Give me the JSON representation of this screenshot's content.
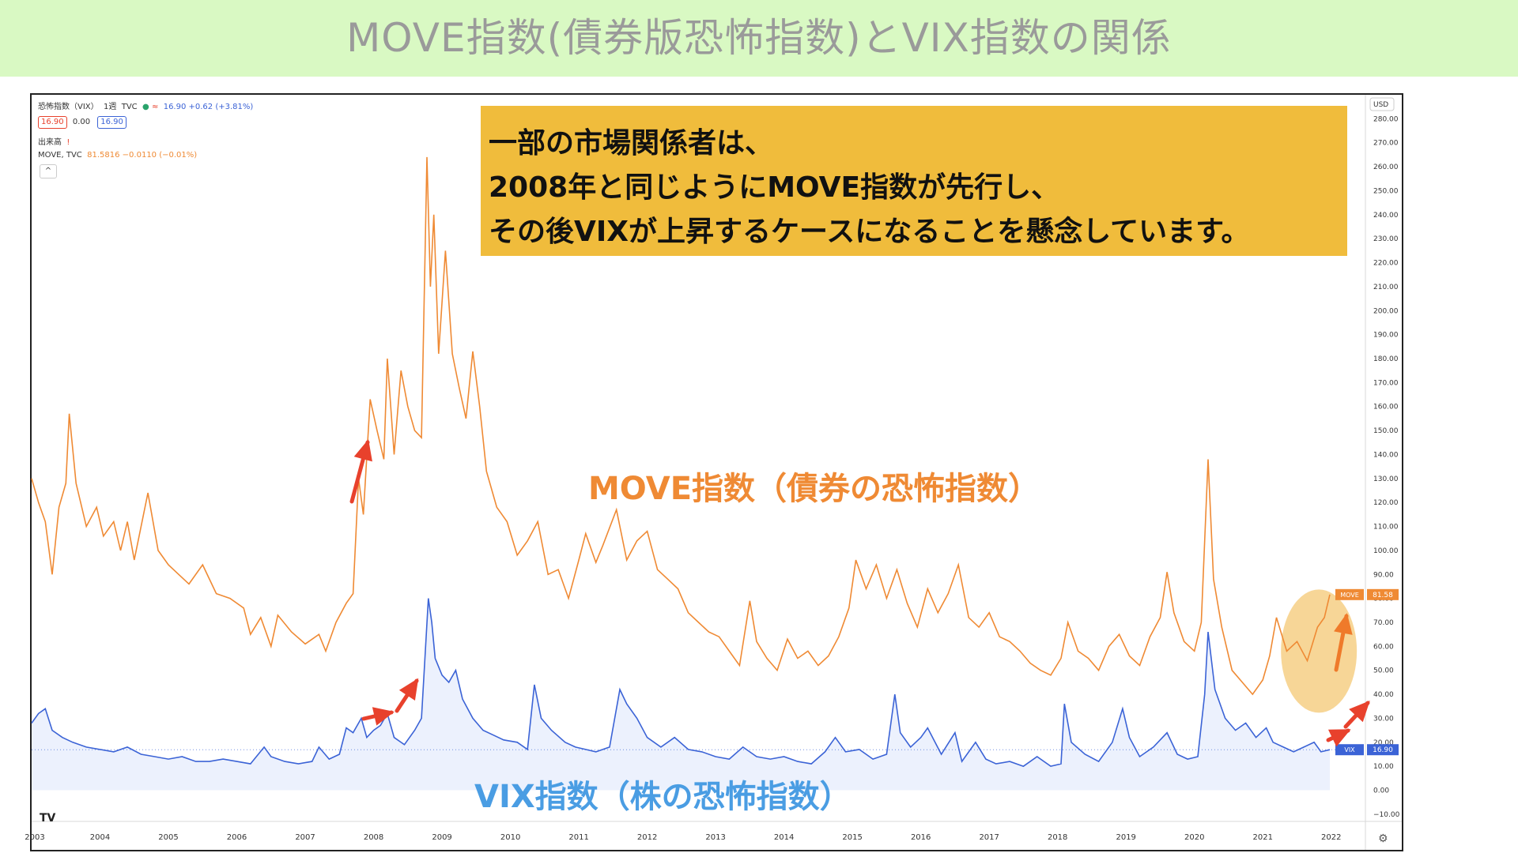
{
  "page_title": "MOVE指数(債券版恐怖指数)とVIX指数の関係",
  "legend": {
    "symbol_line": "恐怖指数（VIX）",
    "interval": "1週",
    "source": "TVC",
    "quote": "16.90 +0.62 (+3.81%)",
    "bid": "16.90",
    "spread": "0.00",
    "ask": "16.90",
    "volume_label": "出来高",
    "volume_alert": "!",
    "move_line": "MOVE, TVC",
    "move_quote": "81.5816 −0.0110 (−0.01%)",
    "collapse": "^"
  },
  "callout": {
    "line1": "一部の市場関係者は、",
    "line2": "2008年と同じようにMOVE指数が先行し、",
    "line3": "その後VIXが上昇するケースになることを懸念しています。"
  },
  "move_label": "MOVE指数（債券の恐怖指数）",
  "vix_label": "VIX指数（株の恐怖指数）",
  "tv_logo": "TV",
  "chart_data": {
    "type": "line",
    "currency": "USD",
    "x_ticks": [
      "2003",
      "2004",
      "2005",
      "2006",
      "2007",
      "2008",
      "2009",
      "2010",
      "2011",
      "2012",
      "2013",
      "2014",
      "2015",
      "2016",
      "2017",
      "2018",
      "2019",
      "2020",
      "2021",
      "2022"
    ],
    "y_ticks": [
      "280.00",
      "270.00",
      "260.00",
      "250.00",
      "240.00",
      "230.00",
      "220.00",
      "210.00",
      "200.00",
      "190.00",
      "180.00",
      "170.00",
      "160.00",
      "150.00",
      "140.00",
      "130.00",
      "120.00",
      "110.00",
      "100.00",
      "90.00",
      "80.00",
      "70.00",
      "60.00",
      "50.00",
      "40.00",
      "30.00",
      "20.00",
      "10.00",
      "0.00",
      "−10.00"
    ],
    "ylim": [
      -13,
      290
    ],
    "xlim": [
      2003,
      2022.5
    ],
    "grid": false,
    "series": [
      {
        "name": "MOVE",
        "color": "#ef8a34",
        "last_value": "81.58",
        "points": [
          [
            2003.0,
            130
          ],
          [
            2003.1,
            120
          ],
          [
            2003.2,
            112
          ],
          [
            2003.3,
            90
          ],
          [
            2003.4,
            118
          ],
          [
            2003.5,
            128
          ],
          [
            2003.55,
            157
          ],
          [
            2003.65,
            128
          ],
          [
            2003.8,
            110
          ],
          [
            2003.95,
            118
          ],
          [
            2004.05,
            106
          ],
          [
            2004.2,
            112
          ],
          [
            2004.3,
            100
          ],
          [
            2004.4,
            112
          ],
          [
            2004.5,
            96
          ],
          [
            2004.7,
            124
          ],
          [
            2004.85,
            100
          ],
          [
            2005.0,
            94
          ],
          [
            2005.15,
            90
          ],
          [
            2005.3,
            86
          ],
          [
            2005.5,
            94
          ],
          [
            2005.7,
            82
          ],
          [
            2005.9,
            80
          ],
          [
            2006.1,
            76
          ],
          [
            2006.2,
            65
          ],
          [
            2006.35,
            72
          ],
          [
            2006.5,
            60
          ],
          [
            2006.6,
            73
          ],
          [
            2006.8,
            66
          ],
          [
            2007.0,
            61
          ],
          [
            2007.2,
            65
          ],
          [
            2007.3,
            58
          ],
          [
            2007.45,
            70
          ],
          [
            2007.6,
            78
          ],
          [
            2007.7,
            82
          ],
          [
            2007.78,
            130
          ],
          [
            2007.85,
            115
          ],
          [
            2007.95,
            163
          ],
          [
            2008.05,
            150
          ],
          [
            2008.15,
            138
          ],
          [
            2008.2,
            180
          ],
          [
            2008.3,
            140
          ],
          [
            2008.4,
            175
          ],
          [
            2008.5,
            160
          ],
          [
            2008.6,
            150
          ],
          [
            2008.7,
            147
          ],
          [
            2008.78,
            264
          ],
          [
            2008.83,
            210
          ],
          [
            2008.88,
            240
          ],
          [
            2008.95,
            182
          ],
          [
            2009.05,
            225
          ],
          [
            2009.15,
            182
          ],
          [
            2009.25,
            168
          ],
          [
            2009.35,
            155
          ],
          [
            2009.45,
            183
          ],
          [
            2009.55,
            160
          ],
          [
            2009.65,
            133
          ],
          [
            2009.8,
            118
          ],
          [
            2009.95,
            112
          ],
          [
            2010.1,
            98
          ],
          [
            2010.25,
            104
          ],
          [
            2010.4,
            112
          ],
          [
            2010.55,
            90
          ],
          [
            2010.7,
            92
          ],
          [
            2010.85,
            80
          ],
          [
            2011.0,
            96
          ],
          [
            2011.1,
            107
          ],
          [
            2011.25,
            95
          ],
          [
            2011.35,
            102
          ],
          [
            2011.55,
            117
          ],
          [
            2011.7,
            96
          ],
          [
            2011.85,
            104
          ],
          [
            2012.0,
            108
          ],
          [
            2012.15,
            92
          ],
          [
            2012.3,
            88
          ],
          [
            2012.45,
            84
          ],
          [
            2012.6,
            74
          ],
          [
            2012.75,
            70
          ],
          [
            2012.9,
            66
          ],
          [
            2013.05,
            64
          ],
          [
            2013.2,
            58
          ],
          [
            2013.35,
            52
          ],
          [
            2013.5,
            79
          ],
          [
            2013.6,
            62
          ],
          [
            2013.75,
            55
          ],
          [
            2013.9,
            50
          ],
          [
            2014.05,
            63
          ],
          [
            2014.2,
            55
          ],
          [
            2014.35,
            58
          ],
          [
            2014.5,
            52
          ],
          [
            2014.65,
            56
          ],
          [
            2014.8,
            64
          ],
          [
            2014.95,
            76
          ],
          [
            2015.05,
            96
          ],
          [
            2015.2,
            84
          ],
          [
            2015.35,
            94
          ],
          [
            2015.5,
            80
          ],
          [
            2015.65,
            92
          ],
          [
            2015.8,
            78
          ],
          [
            2015.95,
            68
          ],
          [
            2016.1,
            84
          ],
          [
            2016.25,
            74
          ],
          [
            2016.4,
            82
          ],
          [
            2016.55,
            94
          ],
          [
            2016.7,
            72
          ],
          [
            2016.85,
            68
          ],
          [
            2017.0,
            74
          ],
          [
            2017.15,
            64
          ],
          [
            2017.3,
            62
          ],
          [
            2017.45,
            58
          ],
          [
            2017.6,
            53
          ],
          [
            2017.75,
            50
          ],
          [
            2017.9,
            48
          ],
          [
            2018.05,
            55
          ],
          [
            2018.15,
            70
          ],
          [
            2018.3,
            58
          ],
          [
            2018.45,
            55
          ],
          [
            2018.6,
            50
          ],
          [
            2018.75,
            60
          ],
          [
            2018.9,
            65
          ],
          [
            2019.05,
            56
          ],
          [
            2019.2,
            52
          ],
          [
            2019.35,
            64
          ],
          [
            2019.5,
            72
          ],
          [
            2019.6,
            91
          ],
          [
            2019.7,
            74
          ],
          [
            2019.85,
            62
          ],
          [
            2020.0,
            58
          ],
          [
            2020.1,
            70
          ],
          [
            2020.2,
            138
          ],
          [
            2020.28,
            88
          ],
          [
            2020.4,
            68
          ],
          [
            2020.55,
            50
          ],
          [
            2020.7,
            45
          ],
          [
            2020.85,
            40
          ],
          [
            2021.0,
            46
          ],
          [
            2021.1,
            56
          ],
          [
            2021.2,
            72
          ],
          [
            2021.35,
            58
          ],
          [
            2021.5,
            62
          ],
          [
            2021.65,
            54
          ],
          [
            2021.8,
            68
          ],
          [
            2021.9,
            72
          ],
          [
            2021.98,
            81.58
          ]
        ]
      },
      {
        "name": "VIX",
        "color": "#3b63d6",
        "last_value": "16.90",
        "points": [
          [
            2003.0,
            28
          ],
          [
            2003.1,
            32
          ],
          [
            2003.2,
            34
          ],
          [
            2003.3,
            25
          ],
          [
            2003.45,
            22
          ],
          [
            2003.6,
            20
          ],
          [
            2003.8,
            18
          ],
          [
            2004.0,
            17
          ],
          [
            2004.2,
            16
          ],
          [
            2004.4,
            18
          ],
          [
            2004.6,
            15
          ],
          [
            2004.8,
            14
          ],
          [
            2005.0,
            13
          ],
          [
            2005.2,
            14
          ],
          [
            2005.4,
            12
          ],
          [
            2005.6,
            12
          ],
          [
            2005.8,
            13
          ],
          [
            2006.0,
            12
          ],
          [
            2006.2,
            11
          ],
          [
            2006.4,
            18
          ],
          [
            2006.5,
            14
          ],
          [
            2006.7,
            12
          ],
          [
            2006.9,
            11
          ],
          [
            2007.1,
            12
          ],
          [
            2007.2,
            18
          ],
          [
            2007.35,
            13
          ],
          [
            2007.5,
            15
          ],
          [
            2007.6,
            26
          ],
          [
            2007.7,
            24
          ],
          [
            2007.82,
            30
          ],
          [
            2007.9,
            22
          ],
          [
            2008.0,
            25
          ],
          [
            2008.1,
            27
          ],
          [
            2008.2,
            32
          ],
          [
            2008.3,
            22
          ],
          [
            2008.45,
            19
          ],
          [
            2008.6,
            25
          ],
          [
            2008.7,
            30
          ],
          [
            2008.8,
            80
          ],
          [
            2008.85,
            70
          ],
          [
            2008.9,
            55
          ],
          [
            2009.0,
            48
          ],
          [
            2009.1,
            45
          ],
          [
            2009.2,
            50
          ],
          [
            2009.3,
            38
          ],
          [
            2009.45,
            30
          ],
          [
            2009.6,
            25
          ],
          [
            2009.75,
            23
          ],
          [
            2009.9,
            21
          ],
          [
            2010.1,
            20
          ],
          [
            2010.25,
            17
          ],
          [
            2010.35,
            44
          ],
          [
            2010.45,
            30
          ],
          [
            2010.6,
            25
          ],
          [
            2010.8,
            20
          ],
          [
            2010.95,
            18
          ],
          [
            2011.1,
            17
          ],
          [
            2011.25,
            16
          ],
          [
            2011.45,
            18
          ],
          [
            2011.6,
            42
          ],
          [
            2011.7,
            36
          ],
          [
            2011.85,
            30
          ],
          [
            2012.0,
            22
          ],
          [
            2012.2,
            18
          ],
          [
            2012.4,
            22
          ],
          [
            2012.6,
            17
          ],
          [
            2012.8,
            16
          ],
          [
            2013.0,
            14
          ],
          [
            2013.2,
            13
          ],
          [
            2013.4,
            18
          ],
          [
            2013.6,
            14
          ],
          [
            2013.8,
            13
          ],
          [
            2014.0,
            14
          ],
          [
            2014.2,
            12
          ],
          [
            2014.4,
            11
          ],
          [
            2014.6,
            16
          ],
          [
            2014.75,
            22
          ],
          [
            2014.9,
            16
          ],
          [
            2015.1,
            17
          ],
          [
            2015.3,
            13
          ],
          [
            2015.5,
            15
          ],
          [
            2015.62,
            40
          ],
          [
            2015.7,
            24
          ],
          [
            2015.85,
            18
          ],
          [
            2016.0,
            22
          ],
          [
            2016.1,
            26
          ],
          [
            2016.3,
            15
          ],
          [
            2016.5,
            24
          ],
          [
            2016.6,
            12
          ],
          [
            2016.8,
            20
          ],
          [
            2016.95,
            13
          ],
          [
            2017.1,
            11
          ],
          [
            2017.3,
            12
          ],
          [
            2017.5,
            10
          ],
          [
            2017.7,
            14
          ],
          [
            2017.9,
            10
          ],
          [
            2018.05,
            11
          ],
          [
            2018.1,
            36
          ],
          [
            2018.2,
            20
          ],
          [
            2018.4,
            15
          ],
          [
            2018.6,
            12
          ],
          [
            2018.8,
            20
          ],
          [
            2018.95,
            34
          ],
          [
            2019.05,
            22
          ],
          [
            2019.2,
            14
          ],
          [
            2019.4,
            18
          ],
          [
            2019.6,
            24
          ],
          [
            2019.75,
            15
          ],
          [
            2019.9,
            13
          ],
          [
            2020.05,
            14
          ],
          [
            2020.15,
            40
          ],
          [
            2020.2,
            66
          ],
          [
            2020.3,
            42
          ],
          [
            2020.45,
            30
          ],
          [
            2020.6,
            25
          ],
          [
            2020.75,
            28
          ],
          [
            2020.9,
            22
          ],
          [
            2021.05,
            26
          ],
          [
            2021.15,
            20
          ],
          [
            2021.3,
            18
          ],
          [
            2021.45,
            16
          ],
          [
            2021.6,
            18
          ],
          [
            2021.75,
            20
          ],
          [
            2021.85,
            16
          ],
          [
            2021.98,
            16.9
          ]
        ]
      }
    ]
  },
  "colors": {
    "title_band": "#d9f9c3",
    "callout": "#f0bc3c",
    "move": "#ef8a34",
    "vix": "#3b63d6",
    "arrow": "#e8412c",
    "highlight": "#f4c56b"
  }
}
